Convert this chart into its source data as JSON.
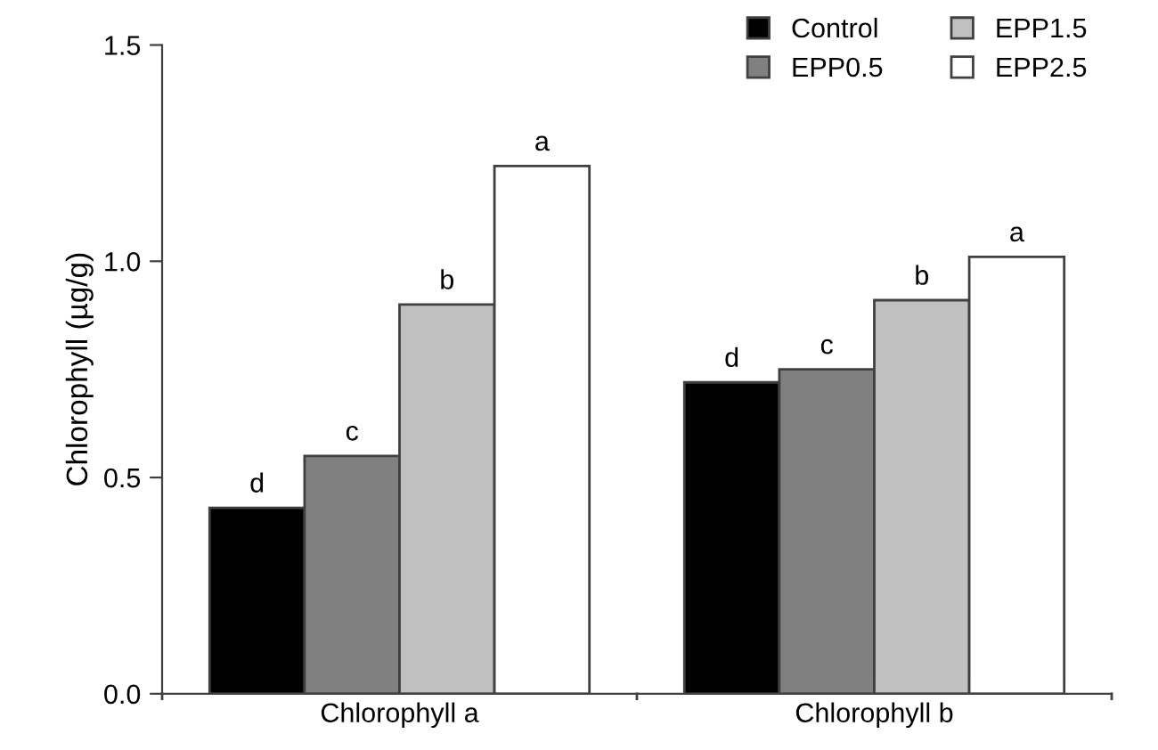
{
  "chart_data": {
    "type": "bar",
    "ylabel": "Chlorophyll (µg/g)",
    "categories": [
      "Chlorophyll a",
      "Chlorophyll b"
    ],
    "series": [
      {
        "name": "Control",
        "color": "#000000",
        "values": [
          0.43,
          0.72
        ],
        "value_labels": [
          "d",
          "d"
        ]
      },
      {
        "name": "EPP0.5",
        "color": "#808080",
        "values": [
          0.55,
          0.75
        ],
        "value_labels": [
          "c",
          "c"
        ]
      },
      {
        "name": "EPP1.5",
        "color": "#c0c0c0",
        "values": [
          0.9,
          0.91
        ],
        "value_labels": [
          "b",
          "b"
        ]
      },
      {
        "name": "EPP2.5",
        "color": "#ffffff",
        "values": [
          1.22,
          1.01
        ],
        "value_labels": [
          "a",
          "a"
        ]
      }
    ],
    "ylim": [
      0,
      1.5
    ],
    "yticks": [
      {
        "value": 0,
        "label": "0.0"
      },
      {
        "value": 0.5,
        "label": "0.5"
      },
      {
        "value": 1.0,
        "label": "1.0"
      },
      {
        "value": 1.5,
        "label": "1.5"
      }
    ],
    "grid": false,
    "legend": "top right"
  }
}
